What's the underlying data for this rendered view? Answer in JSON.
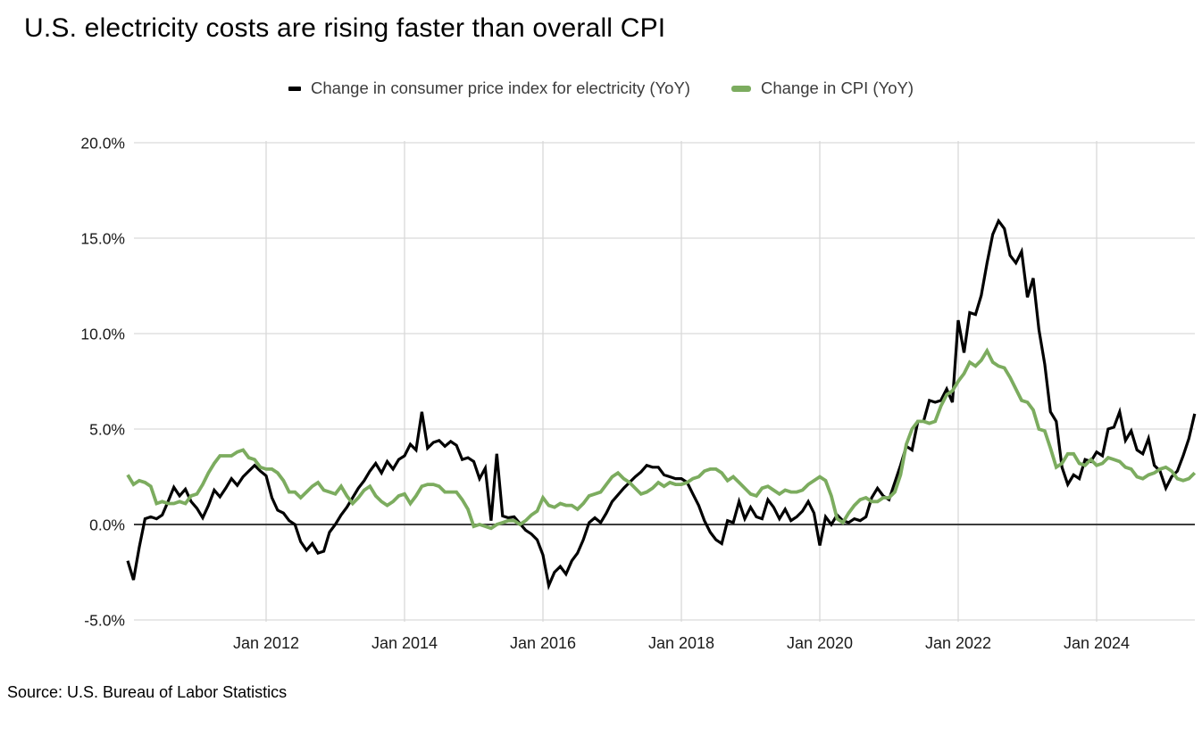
{
  "title": "U.S. electricity costs are rising faster than overall CPI",
  "source": "Source: U.S. Bureau of Labor Statistics",
  "legend": [
    {
      "label": "Change in consumer price index for electricity (YoY)",
      "color": "#000000"
    },
    {
      "label": "Change in CPI (YoY)",
      "color": "#7cac5f"
    }
  ],
  "chart_data": {
    "type": "line",
    "title": "U.S. electricity costs are rising faster than overall CPI",
    "unit": "percent, year-over-year",
    "x_frequency": "monthly",
    "x_start": "2010-01",
    "x_end": "2025-06",
    "grid": true,
    "legend_position": "top",
    "y_axis": {
      "range": [
        -5,
        20
      ],
      "ticks": [
        20,
        15,
        10,
        5,
        0,
        -5
      ],
      "tick_labels": [
        "20.0%",
        "15.0%",
        "10.0%",
        "5.0%",
        "0.0%",
        "-5.0%"
      ]
    },
    "x_axis": {
      "tick_labels": [
        "Jan 2012",
        "Jan 2014",
        "Jan 2016",
        "Jan 2018",
        "Jan 2020",
        "Jan 2022",
        "Jan 2024"
      ],
      "tick_month_indices": [
        24,
        48,
        72,
        96,
        120,
        144,
        168
      ]
    },
    "series": [
      {
        "name": "Change in consumer price index for electricity (YoY)",
        "color": "#000000",
        "values": [
          -1.9,
          -2.9,
          -1.2,
          0.3,
          0.4,
          0.3,
          0.5,
          1.2,
          1.95,
          1.5,
          1.85,
          1.2,
          0.85,
          0.35,
          1.0,
          1.8,
          1.45,
          1.9,
          2.4,
          2.05,
          2.5,
          2.8,
          3.1,
          2.8,
          2.55,
          1.4,
          0.75,
          0.6,
          0.2,
          0.0,
          -0.9,
          -1.35,
          -1.0,
          -1.5,
          -1.4,
          -0.4,
          0.0,
          0.5,
          0.9,
          1.4,
          1.9,
          2.3,
          2.8,
          3.2,
          2.7,
          3.3,
          2.9,
          3.4,
          3.6,
          4.2,
          3.9,
          5.9,
          4.0,
          4.3,
          4.4,
          4.1,
          4.35,
          4.15,
          3.4,
          3.5,
          3.3,
          2.4,
          2.95,
          0.2,
          3.7,
          0.45,
          0.35,
          0.4,
          0.05,
          -0.3,
          -0.5,
          -0.8,
          -1.6,
          -3.2,
          -2.5,
          -2.2,
          -2.6,
          -1.9,
          -1.5,
          -0.8,
          0.1,
          0.35,
          0.1,
          0.6,
          1.2,
          1.55,
          1.9,
          2.2,
          2.5,
          2.75,
          3.1,
          3.0,
          3.0,
          2.6,
          2.5,
          2.4,
          2.4,
          2.2,
          1.6,
          1.0,
          0.2,
          -0.4,
          -0.8,
          -1.0,
          0.2,
          0.1,
          1.2,
          0.3,
          0.9,
          0.4,
          0.3,
          1.3,
          0.9,
          0.3,
          0.8,
          0.2,
          0.4,
          0.7,
          1.2,
          0.6,
          -1.1,
          0.4,
          0.0,
          0.5,
          0.2,
          0.1,
          0.3,
          0.2,
          0.4,
          1.4,
          1.9,
          1.5,
          1.3,
          2.2,
          3.1,
          4.1,
          3.9,
          5.4,
          5.4,
          6.5,
          6.4,
          6.5,
          7.1,
          6.4,
          10.7,
          9.0,
          11.1,
          11.0,
          12.0,
          13.7,
          15.2,
          15.9,
          15.5,
          14.1,
          13.7,
          14.3,
          11.9,
          12.9,
          10.2,
          8.4,
          5.9,
          5.4,
          3.0,
          2.1,
          2.6,
          2.4,
          3.4,
          3.3,
          3.8,
          3.6,
          5.0,
          5.1,
          5.9,
          4.4,
          4.9,
          3.9,
          3.7,
          4.5,
          3.1,
          2.8,
          1.9,
          2.5,
          2.8,
          3.6,
          4.5,
          5.8
        ]
      },
      {
        "name": "Change in CPI (YoY)",
        "color": "#7cac5f",
        "values": [
          2.6,
          2.1,
          2.3,
          2.2,
          2.0,
          1.1,
          1.2,
          1.1,
          1.1,
          1.2,
          1.1,
          1.5,
          1.6,
          2.1,
          2.7,
          3.2,
          3.6,
          3.6,
          3.6,
          3.8,
          3.9,
          3.5,
          3.4,
          3.0,
          2.9,
          2.9,
          2.7,
          2.3,
          1.7,
          1.7,
          1.4,
          1.7,
          2.0,
          2.2,
          1.8,
          1.7,
          1.6,
          2.0,
          1.5,
          1.1,
          1.4,
          1.8,
          2.0,
          1.5,
          1.2,
          1.0,
          1.2,
          1.5,
          1.6,
          1.1,
          1.5,
          2.0,
          2.1,
          2.1,
          2.0,
          1.7,
          1.7,
          1.7,
          1.3,
          0.8,
          -0.1,
          0.0,
          -0.1,
          -0.2,
          0.0,
          0.1,
          0.2,
          0.2,
          0.0,
          0.2,
          0.5,
          0.7,
          1.4,
          1.0,
          0.9,
          1.1,
          1.0,
          1.0,
          0.8,
          1.1,
          1.5,
          1.6,
          1.7,
          2.1,
          2.5,
          2.7,
          2.4,
          2.2,
          1.9,
          1.6,
          1.7,
          1.9,
          2.2,
          2.0,
          2.2,
          2.1,
          2.1,
          2.2,
          2.4,
          2.5,
          2.8,
          2.9,
          2.9,
          2.7,
          2.3,
          2.5,
          2.2,
          1.9,
          1.6,
          1.5,
          1.9,
          2.0,
          1.8,
          1.6,
          1.8,
          1.7,
          1.7,
          1.8,
          2.1,
          2.3,
          2.5,
          2.3,
          1.5,
          0.3,
          0.1,
          0.6,
          1.0,
          1.3,
          1.4,
          1.2,
          1.2,
          1.4,
          1.4,
          1.7,
          2.6,
          4.2,
          5.0,
          5.4,
          5.4,
          5.3,
          5.4,
          6.2,
          6.8,
          7.0,
          7.5,
          7.9,
          8.5,
          8.3,
          8.6,
          9.1,
          8.5,
          8.3,
          8.2,
          7.7,
          7.1,
          6.5,
          6.4,
          6.0,
          5.0,
          4.9,
          4.0,
          3.0,
          3.2,
          3.7,
          3.7,
          3.2,
          3.1,
          3.4,
          3.1,
          3.2,
          3.5,
          3.4,
          3.3,
          3.0,
          2.9,
          2.5,
          2.4,
          2.6,
          2.7,
          2.9,
          3.0,
          2.8,
          2.4,
          2.3,
          2.4,
          2.7
        ]
      }
    ],
    "colors": {
      "grid": "#d9d9d9",
      "zero_line": "#3d3d3d",
      "axis_text": "#1a1a1a"
    }
  }
}
